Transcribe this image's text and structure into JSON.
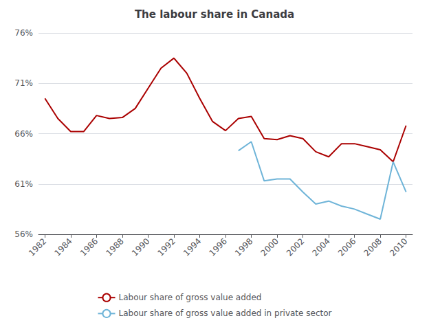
{
  "chart_data": {
    "type": "line",
    "title": "The labour share in Canada",
    "x": [
      1982,
      1983,
      1984,
      1985,
      1986,
      1987,
      1988,
      1989,
      1990,
      1991,
      1992,
      1993,
      1994,
      1995,
      1996,
      1997,
      1998,
      1999,
      2000,
      2001,
      2002,
      2003,
      2004,
      2005,
      2006,
      2007,
      2008,
      2009,
      2010
    ],
    "series": [
      {
        "name": "Labour share of gross value added",
        "color": "#AA0000",
        "values": [
          69.5,
          67.5,
          66.2,
          66.2,
          67.8,
          67.5,
          67.6,
          68.5,
          70.5,
          72.5,
          73.5,
          72.0,
          69.5,
          67.2,
          66.3,
          67.5,
          67.7,
          65.5,
          65.4,
          65.8,
          65.5,
          64.2,
          63.7,
          65.0,
          65.0,
          64.7,
          64.4,
          63.2,
          66.8
        ]
      },
      {
        "name": "Labour share of gross value added in private sector",
        "color": "#6EB4D8",
        "values": [
          null,
          null,
          null,
          null,
          null,
          null,
          null,
          null,
          null,
          null,
          null,
          null,
          null,
          null,
          null,
          64.3,
          65.2,
          61.3,
          61.5,
          61.5,
          60.2,
          59.0,
          59.3,
          58.8,
          58.5,
          58.0,
          57.5,
          63.2,
          60.2
        ]
      }
    ],
    "xlim": [
      1981.5,
      2010.5
    ],
    "xticks": [
      1982,
      1984,
      1986,
      1988,
      1990,
      1992,
      1994,
      1996,
      1998,
      2000,
      2002,
      2004,
      2006,
      2008,
      2010
    ],
    "ylim": [
      56,
      76
    ],
    "yticks": [
      {
        "value": 56,
        "label": "56%"
      },
      {
        "value": 61,
        "label": "61%"
      },
      {
        "value": 66,
        "label": "66%"
      },
      {
        "value": 71,
        "label": "71%"
      },
      {
        "value": 76,
        "label": "76%"
      }
    ],
    "grid": true,
    "legend": "bottom"
  }
}
